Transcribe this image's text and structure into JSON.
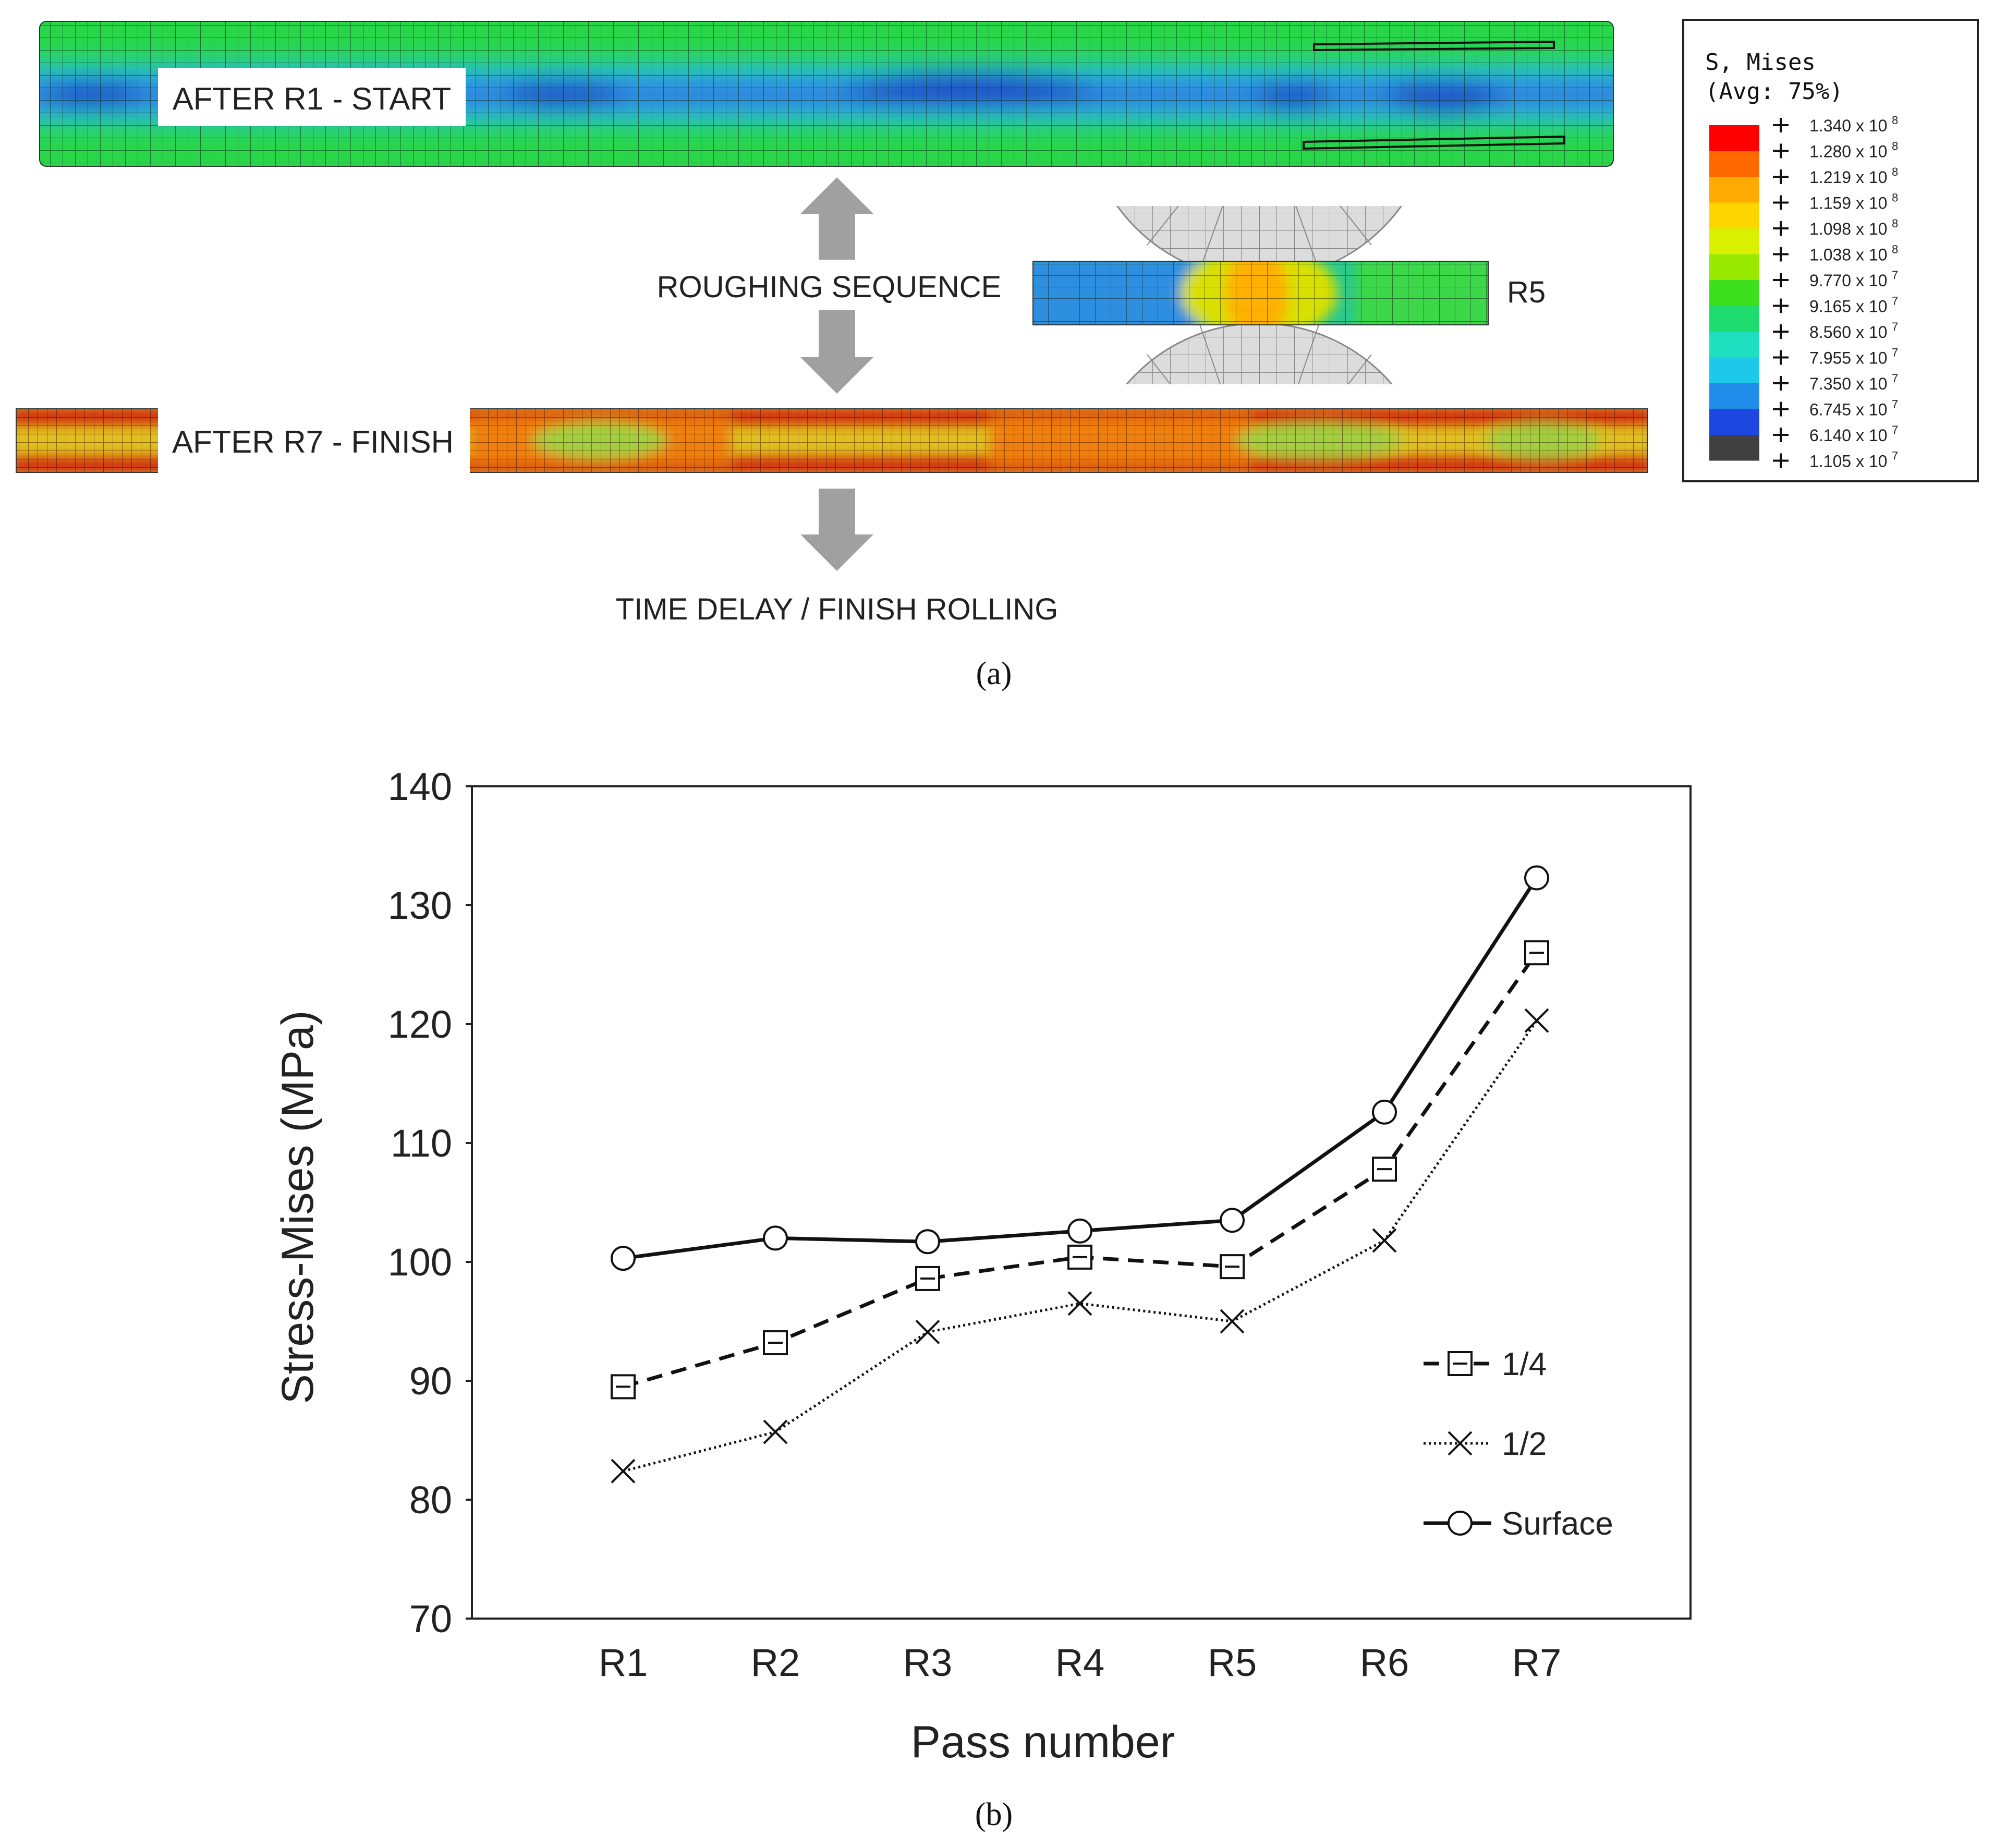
{
  "panel_a": {
    "strip_top_label": "AFTER R1 - START",
    "strip_bottom_label": "AFTER R7 - FINISH",
    "sequence_label": "ROUGHING SEQUENCE",
    "delay_label": "TIME DELAY / FINISH ROLLING",
    "inset_label": "R5",
    "caption": "(a)",
    "legend": {
      "title_line1": "S, Mises",
      "title_line2": "(Avg: 75%)",
      "entries": [
        {
          "label": "1.340 x 10",
          "exp": "8",
          "color": "#ff0000"
        },
        {
          "label": "1.280 x 10",
          "exp": "8",
          "color": "#ff6a00"
        },
        {
          "label": "1.219 x 10",
          "exp": "8",
          "color": "#ffaa00"
        },
        {
          "label": "1.159 x 10",
          "exp": "8",
          "color": "#ffd500"
        },
        {
          "label": "1.098 x 10",
          "exp": "8",
          "color": "#d9f000"
        },
        {
          "label": "1.038 x 10",
          "exp": "8",
          "color": "#9aea00"
        },
        {
          "label": "9.770 x 10",
          "exp": "7",
          "color": "#3ce01e"
        },
        {
          "label": "9.165 x 10",
          "exp": "7",
          "color": "#1edc6e"
        },
        {
          "label": "8.560 x 10",
          "exp": "7",
          "color": "#1ee0c0"
        },
        {
          "label": "7.955 x 10",
          "exp": "7",
          "color": "#1ec8e8"
        },
        {
          "label": "7.350 x 10",
          "exp": "7",
          "color": "#1e8ce8"
        },
        {
          "label": "6.745 x 10",
          "exp": "7",
          "color": "#1e46e0"
        },
        {
          "label": "6.140 x 10",
          "exp": "7",
          "color": "#404040"
        },
        {
          "label": "1.105 x 10",
          "exp": "7",
          "color": ""
        }
      ]
    },
    "colors": {
      "top_base": "#29d64a",
      "top_band": "#2f7fe0",
      "top_band_dark": "#2046c8",
      "top_mid": "#28c8d8",
      "bottom_base": "#e0c020",
      "bottom_red": "#d02010",
      "bottom_orange": "#f08010",
      "bottom_green": "#a0d040",
      "arrow": "#a0a0a0",
      "roll": "#d8d8d8"
    }
  },
  "panel_b": {
    "caption": "(b)",
    "legend": [
      "1/4",
      "1/2",
      "Surface"
    ]
  },
  "chart_data": {
    "type": "line",
    "title": "",
    "xlabel": "Pass number",
    "ylabel": "Stress-Mises (MPa)",
    "categories": [
      "R1",
      "R2",
      "R3",
      "R4",
      "R5",
      "R6",
      "R7"
    ],
    "ylim": [
      70,
      140
    ],
    "yticks": [
      70,
      80,
      90,
      100,
      110,
      120,
      130,
      140
    ],
    "grid": false,
    "legend_position": "right",
    "series": [
      {
        "name": "1/4",
        "marker": "square",
        "line": "dashed",
        "values": [
          89.5,
          93.2,
          98.6,
          100.4,
          99.6,
          107.8,
          126.0
        ]
      },
      {
        "name": "1/2",
        "marker": "x",
        "line": "dotted",
        "values": [
          82.4,
          85.7,
          94.1,
          96.5,
          95.0,
          101.8,
          120.3
        ]
      },
      {
        "name": "Surface",
        "marker": "circle",
        "line": "solid",
        "values": [
          100.3,
          102.0,
          101.7,
          102.6,
          103.5,
          112.6,
          132.3
        ]
      }
    ]
  }
}
